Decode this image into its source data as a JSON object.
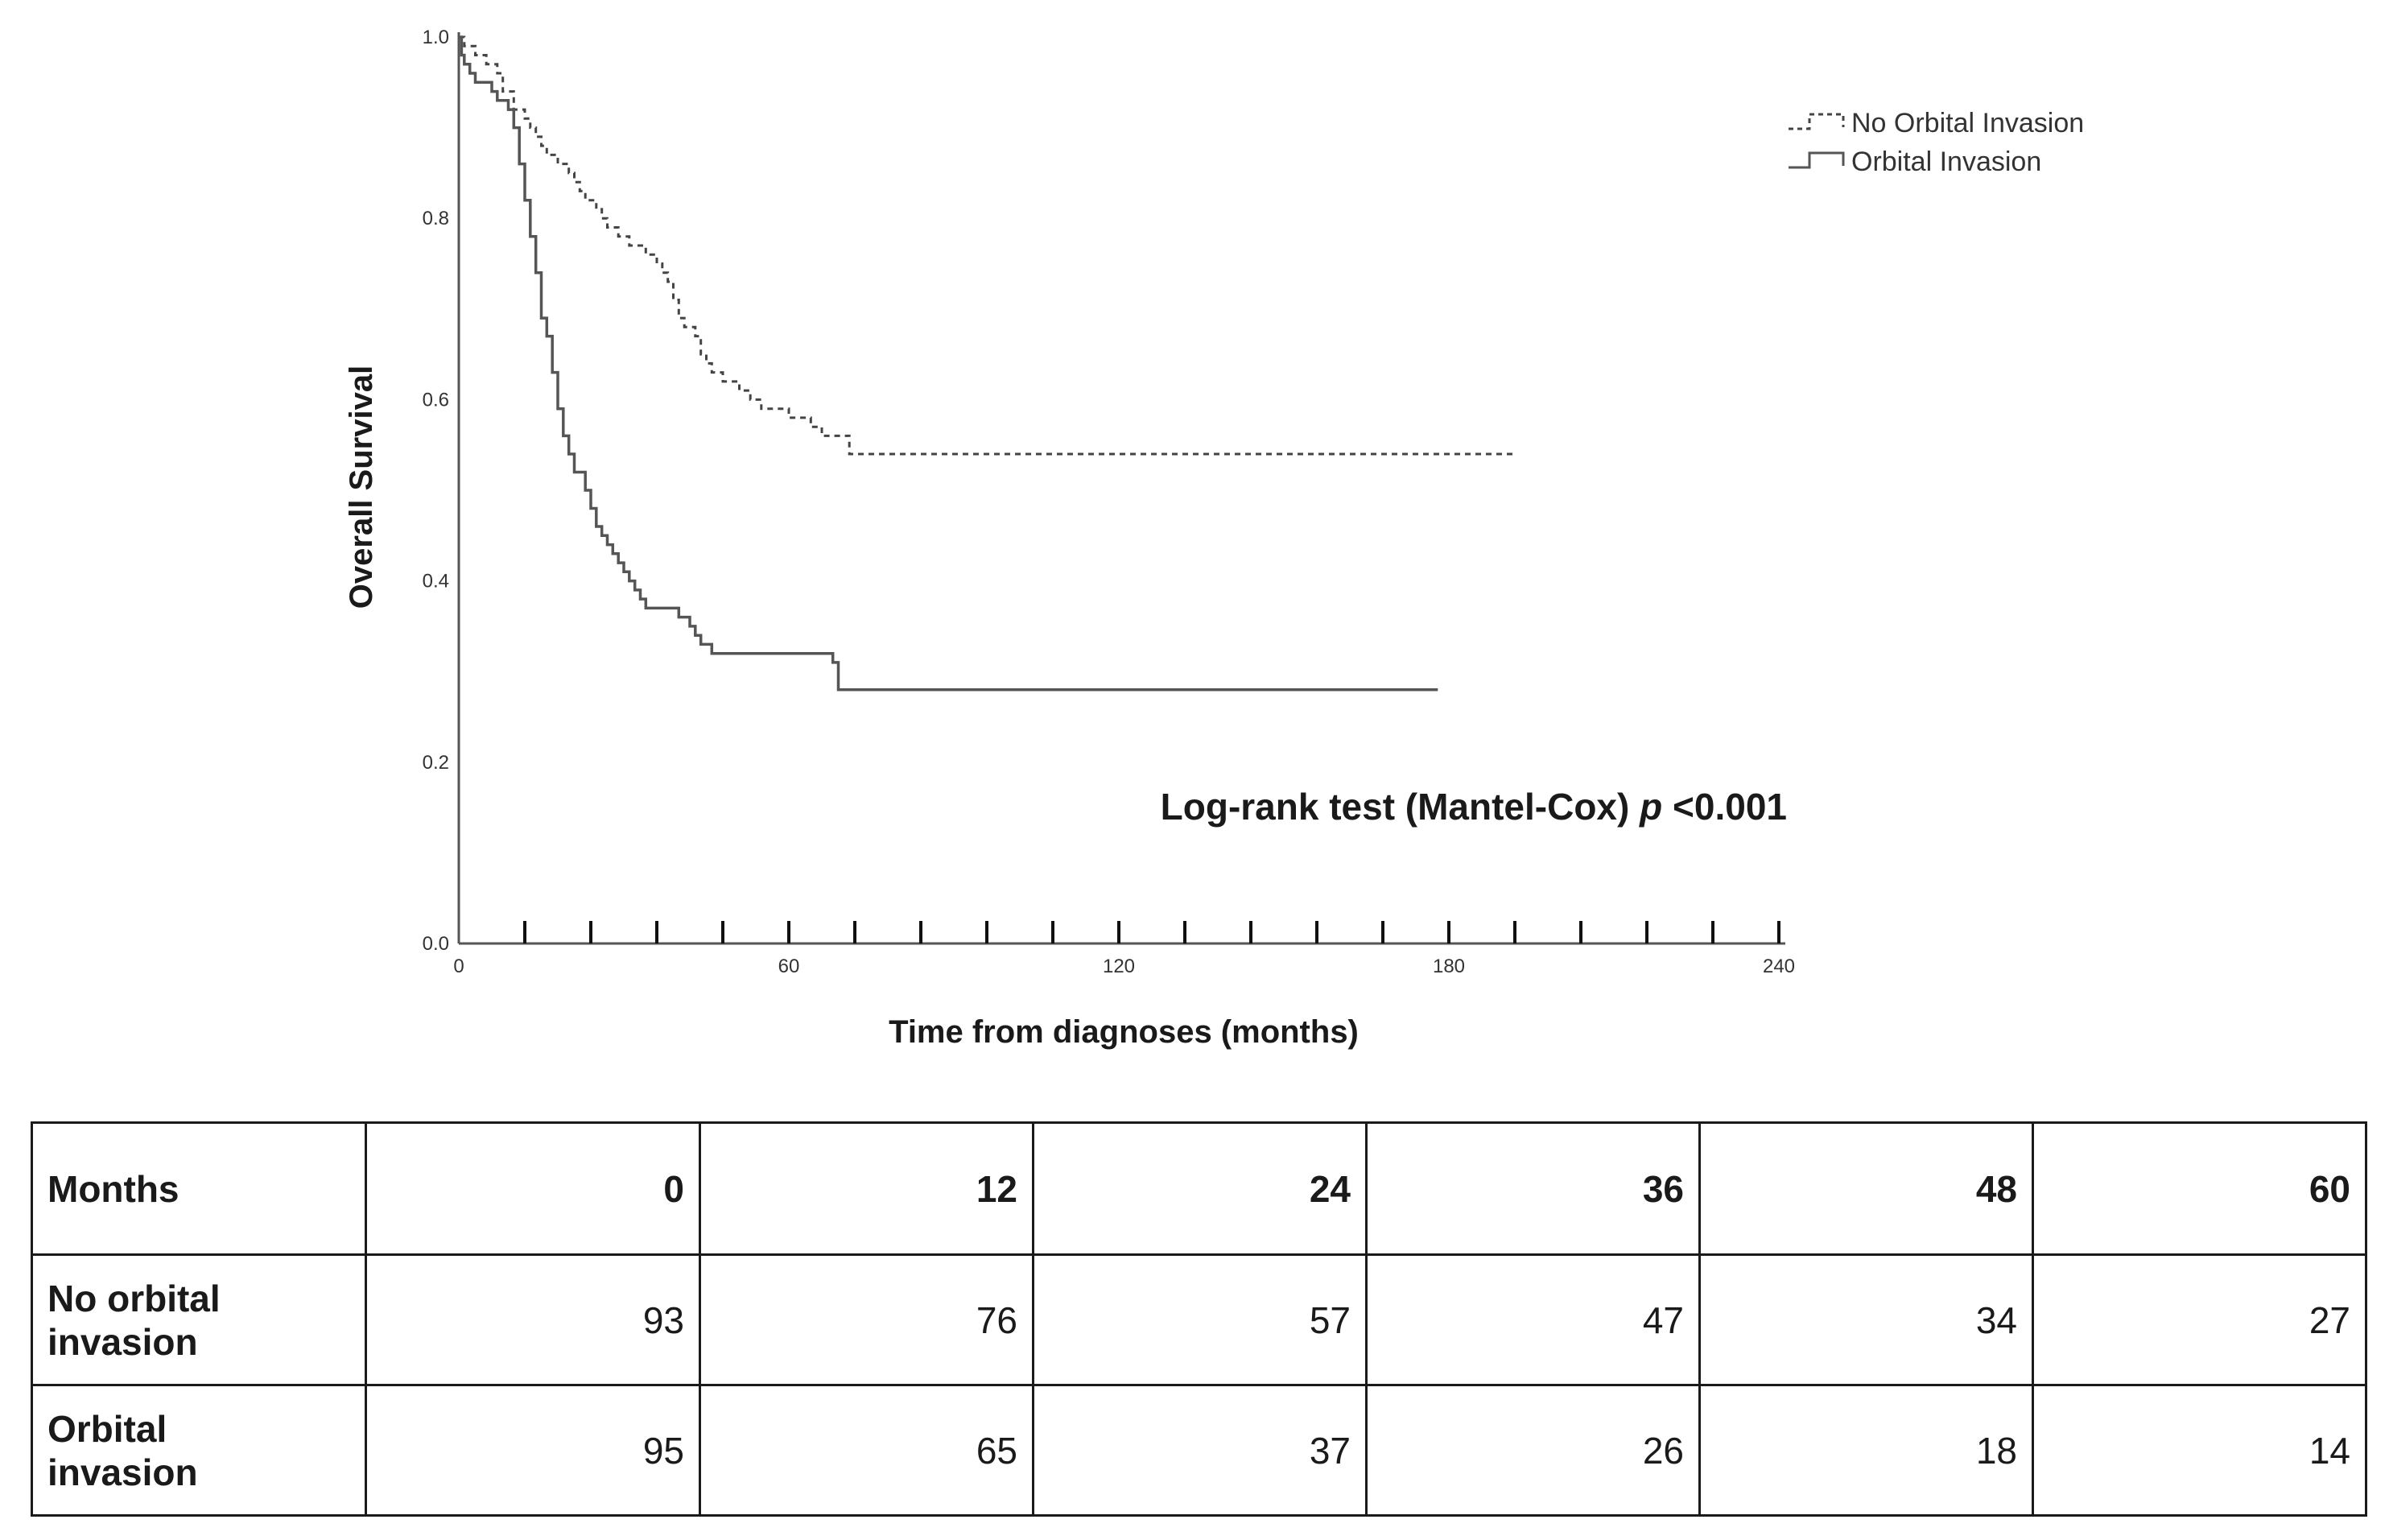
{
  "chart_data": {
    "type": "line",
    "subtype": "kaplan-meier step",
    "title": "",
    "xlabel": "Time from diagnoses (months)",
    "ylabel": "Overall Survival",
    "xlim": [
      0,
      240
    ],
    "ylim": [
      0,
      1.0
    ],
    "x_tick_labels": [
      "0",
      "60",
      "120",
      "180",
      "240"
    ],
    "y_tick_labels": [
      "0.0",
      "0.2",
      "0.4",
      "0.6",
      "0.8",
      "1.0"
    ],
    "annotation": {
      "text": "Log-rank test (Mantel-Cox) ",
      "italic": "p",
      "after": " <0.001"
    },
    "legend_position": "top-right",
    "series": [
      {
        "name": "No Orbital Invasion",
        "style": "dashed",
        "color": "#444444",
        "points": [
          [
            0,
            1.0
          ],
          [
            1,
            0.99
          ],
          [
            3,
            0.98
          ],
          [
            5,
            0.97
          ],
          [
            7,
            0.96
          ],
          [
            8,
            0.94
          ],
          [
            10,
            0.92
          ],
          [
            12,
            0.91
          ],
          [
            13,
            0.9
          ],
          [
            14,
            0.89
          ],
          [
            15,
            0.88
          ],
          [
            16,
            0.87
          ],
          [
            18,
            0.86
          ],
          [
            20,
            0.85
          ],
          [
            21,
            0.84
          ],
          [
            22,
            0.83
          ],
          [
            23,
            0.82
          ],
          [
            25,
            0.81
          ],
          [
            26,
            0.8
          ],
          [
            27,
            0.79
          ],
          [
            29,
            0.78
          ],
          [
            31,
            0.77
          ],
          [
            34,
            0.76
          ],
          [
            36,
            0.75
          ],
          [
            37,
            0.74
          ],
          [
            38,
            0.73
          ],
          [
            39,
            0.71
          ],
          [
            40,
            0.69
          ],
          [
            41,
            0.68
          ],
          [
            43,
            0.67
          ],
          [
            44,
            0.65
          ],
          [
            45,
            0.64
          ],
          [
            46,
            0.63
          ],
          [
            48,
            0.62
          ],
          [
            51,
            0.61
          ],
          [
            53,
            0.6
          ],
          [
            55,
            0.59
          ],
          [
            60,
            0.58
          ],
          [
            64,
            0.57
          ],
          [
            66,
            0.56
          ],
          [
            71,
            0.54
          ],
          [
            192,
            0.54
          ]
        ]
      },
      {
        "name": "Orbital Invasion",
        "style": "solid",
        "color": "#555555",
        "points": [
          [
            0,
            1.0
          ],
          [
            0.5,
            0.98
          ],
          [
            1,
            0.97
          ],
          [
            2,
            0.96
          ],
          [
            3,
            0.95
          ],
          [
            6,
            0.94
          ],
          [
            7,
            0.93
          ],
          [
            8,
            0.93
          ],
          [
            9,
            0.92
          ],
          [
            10,
            0.9
          ],
          [
            11,
            0.86
          ],
          [
            12,
            0.82
          ],
          [
            13,
            0.78
          ],
          [
            14,
            0.74
          ],
          [
            15,
            0.69
          ],
          [
            16,
            0.67
          ],
          [
            17,
            0.63
          ],
          [
            18,
            0.59
          ],
          [
            19,
            0.56
          ],
          [
            20,
            0.54
          ],
          [
            21,
            0.52
          ],
          [
            23,
            0.5
          ],
          [
            24,
            0.48
          ],
          [
            25,
            0.46
          ],
          [
            26,
            0.45
          ],
          [
            27,
            0.44
          ],
          [
            28,
            0.43
          ],
          [
            29,
            0.42
          ],
          [
            30,
            0.41
          ],
          [
            31,
            0.4
          ],
          [
            32,
            0.39
          ],
          [
            33,
            0.38
          ],
          [
            34,
            0.37
          ],
          [
            40,
            0.36
          ],
          [
            42,
            0.35
          ],
          [
            43,
            0.34
          ],
          [
            44,
            0.33
          ],
          [
            46,
            0.32
          ],
          [
            68,
            0.31
          ],
          [
            69,
            0.28
          ],
          [
            178,
            0.28
          ]
        ]
      }
    ]
  },
  "risk_table": {
    "header_label": "Months",
    "months": [
      "0",
      "12",
      "24",
      "36",
      "48",
      "60"
    ],
    "rows": [
      {
        "label_line1": "No orbital",
        "label_line2": "invasion",
        "values": [
          "93",
          "76",
          "57",
          "47",
          "34",
          "27"
        ]
      },
      {
        "label_line1": "Orbital",
        "label_line2": "invasion",
        "values": [
          "95",
          "65",
          "37",
          "26",
          "18",
          "14"
        ]
      }
    ]
  }
}
